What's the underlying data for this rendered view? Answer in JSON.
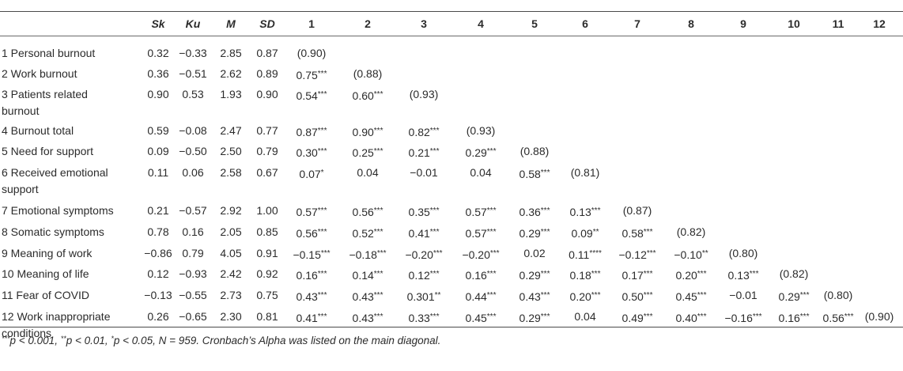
{
  "table": {
    "headers": [
      "Sk",
      "Ku",
      "M",
      "SD",
      "1",
      "2",
      "3",
      "4",
      "5",
      "6",
      "7",
      "8",
      "9",
      "10",
      "11",
      "12"
    ],
    "rows": [
      {
        "label": "1 Personal burnout",
        "sk": "0.32",
        "ku": "−0.33",
        "m": "2.85",
        "sd": "0.87",
        "cells": [
          "(0.90)"
        ]
      },
      {
        "label": "2 Work burnout",
        "sk": "0.36",
        "ku": "−0.51",
        "m": "2.62",
        "sd": "0.89",
        "cells": [
          "0.75***",
          "(0.88)"
        ]
      },
      {
        "label": "3 Patients related burnout",
        "sk": "0.90",
        "ku": "0.53",
        "m": "1.93",
        "sd": "0.90",
        "cells": [
          "0.54***",
          "0.60***",
          "(0.93)"
        ]
      },
      {
        "label": "4 Burnout total",
        "sk": "0.59",
        "ku": "−0.08",
        "m": "2.47",
        "sd": "0.77",
        "cells": [
          "0.87***",
          "0.90***",
          "0.82***",
          "(0.93)"
        ]
      },
      {
        "label": "5 Need for support",
        "sk": "0.09",
        "ku": "−0.50",
        "m": "2.50",
        "sd": "0.79",
        "cells": [
          "0.30***",
          "0.25***",
          "0.21***",
          "0.29***",
          "(0.88)"
        ]
      },
      {
        "label": "6 Received emotional support",
        "sk": "0.11",
        "ku": "0.06",
        "m": "2.58",
        "sd": "0.67",
        "cells": [
          "0.07*",
          "0.04",
          "−0.01",
          "0.04",
          "0.58***",
          "(0.81)"
        ]
      },
      {
        "label": "7 Emotional symptoms",
        "sk": "0.21",
        "ku": "−0.57",
        "m": "2.92",
        "sd": "1.00",
        "cells": [
          "0.57***",
          "0.56***",
          "0.35***",
          "0.57***",
          "0.36***",
          "0.13***",
          "(0.87)"
        ]
      },
      {
        "label": "8 Somatic symptoms",
        "sk": "0.78",
        "ku": "0.16",
        "m": "2.05",
        "sd": "0.85",
        "cells": [
          "0.56***",
          "0.52***",
          "0.41***",
          "0.57***",
          "0.29***",
          "0.09**",
          "0.58***",
          "(0.82)"
        ]
      },
      {
        "label": "9 Meaning of work",
        "sk": "−0.86",
        "ku": "0.79",
        "m": "4.05",
        "sd": "0.91",
        "cells": [
          "−0.15***",
          "−0.18***",
          "−0.20***",
          "−0.20***",
          "0.02",
          "0.11****",
          "−0.12***",
          "−0.10**",
          "(0.80)"
        ]
      },
      {
        "label": "10 Meaning of life",
        "sk": "0.12",
        "ku": "−0.93",
        "m": "2.42",
        "sd": "0.92",
        "cells": [
          "0.16***",
          "0.14***",
          "0.12***",
          "0.16***",
          "0.29***",
          "0.18***",
          "0.17***",
          "0.20***",
          "0.13***",
          "(0.82)"
        ]
      },
      {
        "label": "11 Fear of COVID",
        "sk": "−0.13",
        "ku": "−0.55",
        "m": "2.73",
        "sd": "0.75",
        "cells": [
          "0.43***",
          "0.43***",
          "0.301**",
          "0.44***",
          "0.43***",
          "0.20***",
          "0.50***",
          "0.45***",
          "−0.01",
          "0.29***",
          "(0.80)"
        ]
      },
      {
        "label": "12 Work inappropriate conditions",
        "sk": "0.26",
        "ku": "−0.65",
        "m": "2.30",
        "sd": "0.81",
        "cells": [
          "0.41***",
          "0.43***",
          "0.33***",
          "0.45***",
          "0.29***",
          "0.04",
          "0.49***",
          "0.40***",
          "−0.16***",
          "0.16***",
          "0.56***",
          "(0.90)"
        ]
      }
    ]
  },
  "note": {
    "s1": "***",
    "t1": "p < 0.001, ",
    "s2": "**",
    "t2": "p < 0.01, ",
    "s3": "*",
    "t3": "p < 0.05, N = 959. Cronbach’s Alpha was listed on the main diagonal."
  }
}
